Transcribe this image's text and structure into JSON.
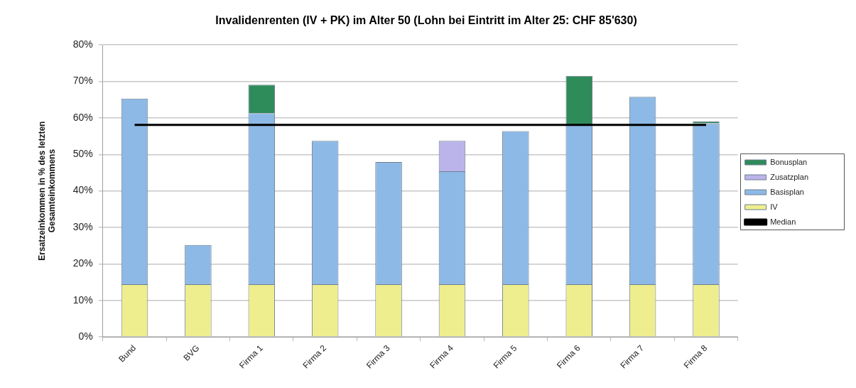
{
  "chart_data": {
    "type": "bar",
    "title": "Invalidenrenten (IV + PK) im Alter 50 (Lohn bei Eintritt im Alter 25: CHF 85'630)",
    "ylabel": "Ersatzeinkommen in % des letzten Gesamteinkommens",
    "categories": [
      "Bund",
      "BVG",
      "Firma 1",
      "Firma 2",
      "Firma 3",
      "Firma 4",
      "Firma 5",
      "Firma 6",
      "Firma 7",
      "Firma 8"
    ],
    "stacked": true,
    "series": [
      {
        "name": "IV",
        "color": "#eeee8e",
        "values": [
          14.4,
          14.4,
          14.4,
          14.4,
          14.4,
          14.4,
          14.4,
          14.4,
          14.4,
          14.4
        ]
      },
      {
        "name": "Basisplan",
        "color": "#8db9e6",
        "values": [
          50.9,
          10.8,
          46.9,
          39.3,
          33.5,
          31.0,
          42.0,
          43.8,
          51.4,
          44.1
        ]
      },
      {
        "name": "Zusatzplan",
        "color": "#bbb4ea",
        "values": [
          null,
          null,
          null,
          null,
          null,
          8.3,
          null,
          null,
          null,
          null
        ]
      },
      {
        "name": "Bonusplan",
        "color": "#2e8b5a",
        "values": [
          null,
          null,
          7.8,
          null,
          null,
          null,
          null,
          13.3,
          null,
          0.5
        ]
      },
      {
        "name": "Median",
        "type": "line",
        "color": "#000000",
        "values": [
          58.1,
          58.1,
          58.1,
          58.1,
          58.1,
          58.1,
          58.1,
          58.1,
          58.1,
          58.1
        ]
      }
    ],
    "ylim": [
      0,
      80
    ],
    "yticks": [
      {
        "value": 0,
        "label": "0%"
      },
      {
        "value": 10,
        "label": "10%"
      },
      {
        "value": 20,
        "label": "20%"
      },
      {
        "value": 30,
        "label": "30%"
      },
      {
        "value": 40,
        "label": "40%"
      },
      {
        "value": 50,
        "label": "50%"
      },
      {
        "value": 60,
        "label": "60%"
      },
      {
        "value": 70,
        "label": "70%"
      },
      {
        "value": 80,
        "label": "80%"
      }
    ],
    "grid": "y",
    "legend": "right",
    "marker": "none"
  }
}
